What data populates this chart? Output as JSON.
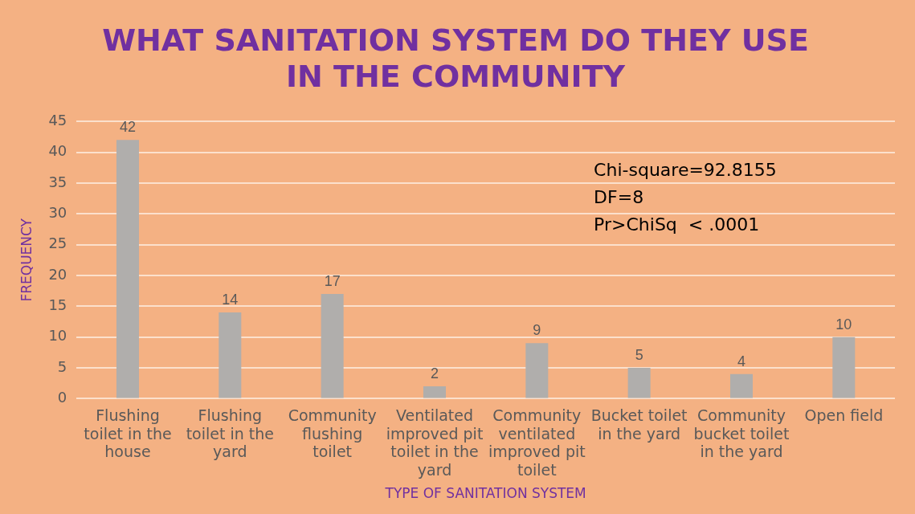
{
  "chart_data": {
    "type": "bar",
    "title": "WHAT SANITATION SYSTEM DO THEY USE IN THE COMMUNITY",
    "xlabel": "TYPE OF SANITATION SYSTEM",
    "ylabel": "FREQUENCY",
    "categories": [
      "Flushing toilet in the house",
      "Flushing toilet in the yard",
      "Community flushing toilet",
      "Ventilated improved pit toilet in the yard",
      "Community ventilated improved pit toilet",
      "Bucket toilet in the yard",
      "Community bucket toilet in the yard",
      "Open field"
    ],
    "values": [
      42,
      14,
      17,
      2,
      9,
      5,
      4,
      10
    ],
    "color": "#b0aeac",
    "ylim": [
      0,
      45
    ],
    "yticks": [
      0,
      5,
      10,
      15,
      20,
      25,
      30,
      35,
      40,
      45
    ],
    "grid": "y",
    "data_labels": true,
    "annotations": [
      "Chi-square=92.8155",
      "DF=8",
      "Pr>ChiSq  < .0001"
    ]
  }
}
